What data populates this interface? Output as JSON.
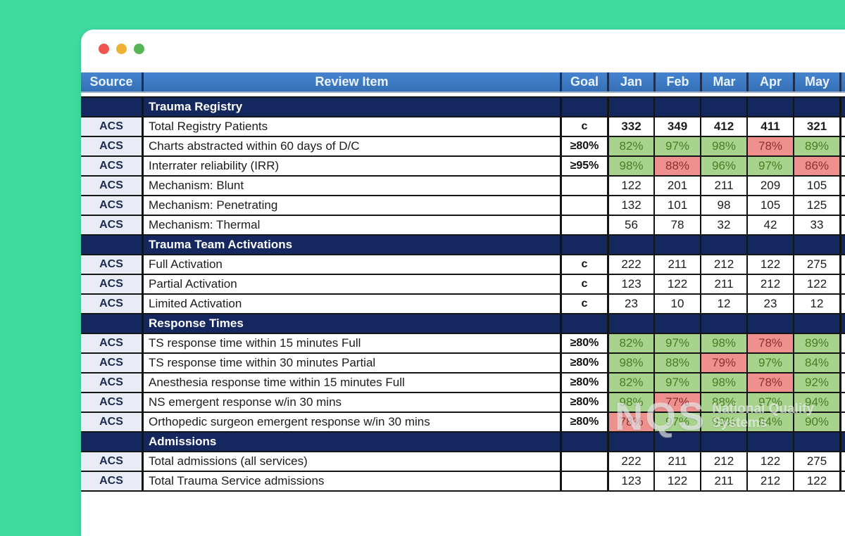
{
  "window": {
    "traffic_lights": [
      "close",
      "minimize",
      "zoom"
    ]
  },
  "colors": {
    "background_teal": "#3edaa0",
    "header_blue": "#3b7ac5",
    "section_navy": "#14275e",
    "source_cell_bg": "#e9ebf5",
    "good_bg": "#a7d38c",
    "good_text": "#4a7d25",
    "bad_bg": "#ee918e",
    "bad_text": "#8f2f2d"
  },
  "table": {
    "columns": [
      "Source",
      "Review Item",
      "Goal",
      "Jan",
      "Feb",
      "Mar",
      "Apr",
      "May"
    ],
    "rows": [
      {
        "type": "section",
        "label": "Trauma Registry"
      },
      {
        "type": "data",
        "source": "ACS",
        "item": "Total Registry Patients",
        "goal": "c",
        "bold_values": true,
        "values": [
          "332",
          "349",
          "412",
          "411",
          "321"
        ],
        "status": [
          "",
          "",
          "",
          "",
          ""
        ]
      },
      {
        "type": "data",
        "source": "ACS",
        "item": "Charts abstracted within 60 days of D/C",
        "goal": "≥80%",
        "values": [
          "82%",
          "97%",
          "98%",
          "78%",
          "89%"
        ],
        "status": [
          "good",
          "good",
          "good",
          "bad",
          "good"
        ]
      },
      {
        "type": "data",
        "source": "ACS",
        "item": "Interrater reliability (IRR)",
        "goal": "≥95%",
        "values": [
          "98%",
          "88%",
          "96%",
          "97%",
          "86%"
        ],
        "status": [
          "good",
          "bad",
          "good",
          "good",
          "bad"
        ]
      },
      {
        "type": "data",
        "source": "ACS",
        "item": "Mechanism: Blunt",
        "goal": "",
        "values": [
          "122",
          "201",
          "211",
          "209",
          "105"
        ],
        "status": [
          "",
          "",
          "",
          "",
          ""
        ]
      },
      {
        "type": "data",
        "source": "ACS",
        "item": "Mechanism: Penetrating",
        "goal": "",
        "values": [
          "132",
          "101",
          "98",
          "105",
          "125"
        ],
        "status": [
          "",
          "",
          "",
          "",
          ""
        ]
      },
      {
        "type": "data",
        "source": "ACS",
        "item": "Mechanism: Thermal",
        "goal": "",
        "values": [
          "56",
          "78",
          "32",
          "42",
          "33"
        ],
        "status": [
          "",
          "",
          "",
          "",
          ""
        ]
      },
      {
        "type": "section",
        "label": "Trauma Team Activations"
      },
      {
        "type": "data",
        "source": "ACS",
        "item": "Full Activation",
        "goal": "c",
        "values": [
          "222",
          "211",
          "212",
          "122",
          "275"
        ],
        "status": [
          "",
          "",
          "",
          "",
          ""
        ]
      },
      {
        "type": "data",
        "source": "ACS",
        "item": "Partial Activation",
        "goal": "c",
        "values": [
          "123",
          "122",
          "211",
          "212",
          "122"
        ],
        "status": [
          "",
          "",
          "",
          "",
          ""
        ]
      },
      {
        "type": "data",
        "source": "ACS",
        "item": "Limited Activation",
        "goal": "c",
        "values": [
          "23",
          "10",
          "12",
          "23",
          "12"
        ],
        "status": [
          "",
          "",
          "",
          "",
          ""
        ]
      },
      {
        "type": "section",
        "label": "Response Times"
      },
      {
        "type": "data",
        "source": "ACS",
        "item": "TS response time within 15 minutes Full",
        "goal": "≥80%",
        "values": [
          "82%",
          "97%",
          "98%",
          "78%",
          "89%"
        ],
        "status": [
          "good",
          "good",
          "good",
          "bad",
          "good"
        ]
      },
      {
        "type": "data",
        "source": "ACS",
        "item": "TS response time within 30 minutes Partial",
        "goal": "≥80%",
        "values": [
          "98%",
          "88%",
          "79%",
          "97%",
          "84%"
        ],
        "status": [
          "good",
          "good",
          "bad",
          "good",
          "good"
        ]
      },
      {
        "type": "data",
        "source": "ACS",
        "item": "Anesthesia response time within 15 minutes Full",
        "goal": "≥80%",
        "values": [
          "82%",
          "97%",
          "98%",
          "78%",
          "92%"
        ],
        "status": [
          "good",
          "good",
          "good",
          "bad",
          "good"
        ]
      },
      {
        "type": "data",
        "source": "ACS",
        "item": "NS emergent response w/in 30 mins",
        "goal": "≥80%",
        "values": [
          "98%",
          "77%",
          "88%",
          "97%",
          "94%"
        ],
        "status": [
          "good",
          "bad",
          "good",
          "good",
          "good"
        ]
      },
      {
        "type": "data",
        "source": "ACS",
        "item": "Orthopedic surgeon emergent response w/in 30 mins",
        "goal": "≥80%",
        "values": [
          "78%",
          "97%",
          "93%",
          "84%",
          "90%"
        ],
        "status": [
          "bad",
          "good",
          "good",
          "good",
          "good"
        ]
      },
      {
        "type": "section",
        "label": "Admissions"
      },
      {
        "type": "data",
        "source": "ACS",
        "item": "Total admissions (all services)",
        "goal": "",
        "values": [
          "222",
          "211",
          "212",
          "122",
          "275"
        ],
        "status": [
          "",
          "",
          "",
          "",
          ""
        ]
      },
      {
        "type": "data",
        "source": "ACS",
        "item": "Total Trauma Service admissions",
        "goal": "",
        "values": [
          "123",
          "122",
          "211",
          "212",
          "122"
        ],
        "status": [
          "",
          "",
          "",
          "",
          ""
        ]
      }
    ]
  },
  "watermark": {
    "abbr": "NQS",
    "line1": "National Quality",
    "line2": "Systems"
  }
}
